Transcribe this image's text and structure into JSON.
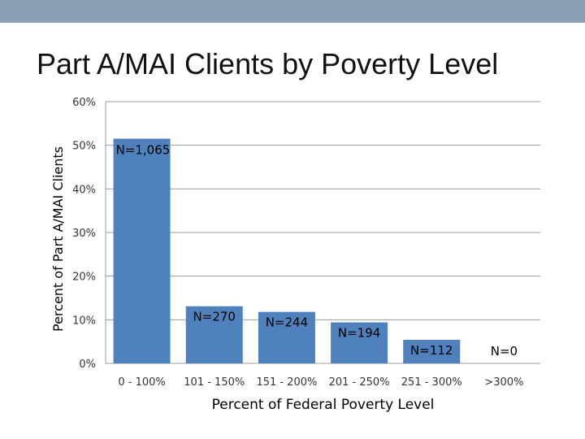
{
  "slide": {
    "title": "Part A/MAI Clients by Poverty Level"
  },
  "colors": {
    "top_bar": "#8a9fb5",
    "bar_fill": "#4f81bd",
    "grid": "#9c9c9c"
  },
  "chart_data": {
    "type": "bar",
    "title": "Part A/MAI Clients by Poverty Level",
    "xlabel": "Percent of Federal Poverty Level",
    "ylabel": "Percent of Part A/MAI Clients",
    "categories": [
      "0 - 100%",
      "101 - 150%",
      "151 - 200%",
      "201 - 250%",
      "251 - 300%",
      ">300%"
    ],
    "values": [
      51.5,
      13.1,
      11.8,
      9.4,
      5.4,
      0
    ],
    "unit": "%",
    "data_labels": [
      "N=1,065",
      "N=270",
      "N=244",
      "N=194",
      "N=112",
      "N=0"
    ],
    "yticks": [
      "0%",
      "10%",
      "20%",
      "30%",
      "40%",
      "50%",
      "60%"
    ],
    "ylim": [
      0,
      60
    ],
    "grid": true,
    "legend": "none"
  }
}
